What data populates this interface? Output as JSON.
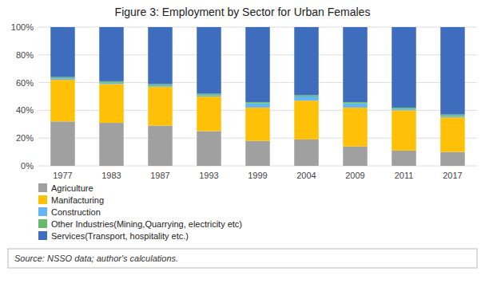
{
  "chart_data": {
    "type": "bar",
    "title": "Figure 3: Employment by Sector for Urban Females",
    "categories": [
      "1977",
      "1983",
      "1987",
      "1993",
      "1999",
      "2004",
      "2009",
      "2011",
      "2017"
    ],
    "series": [
      {
        "name": "Agriculture",
        "color": "#A0A0A0",
        "values": [
          32,
          31,
          29,
          25,
          18,
          19,
          14,
          11,
          10
        ]
      },
      {
        "name": "Manifacturing",
        "color": "#FFC107",
        "values": [
          30,
          28,
          28,
          25,
          24,
          28,
          28,
          29,
          25
        ]
      },
      {
        "name": "Construction",
        "color": "#64B5F6",
        "values": [
          1,
          1,
          1,
          1,
          3,
          3,
          3,
          1,
          1
        ]
      },
      {
        "name": "Other Industries(Mining,Quarrying, electricity etc)",
        "color": "#66BB6A",
        "values": [
          1,
          1,
          1,
          1,
          1,
          1,
          1,
          1,
          1
        ]
      },
      {
        "name": "Services(Transport, hospitality etc.)",
        "color": "#3F6DBE",
        "values": [
          36,
          39,
          41,
          48,
          54,
          49,
          54,
          58,
          63
        ]
      }
    ],
    "ylim": [
      0,
      100
    ],
    "yticks": [
      {
        "value": 0,
        "label": "0%"
      },
      {
        "value": 20,
        "label": "20%"
      },
      {
        "value": 40,
        "label": "40%"
      },
      {
        "value": 60,
        "label": "60%"
      },
      {
        "value": 80,
        "label": "80%"
      },
      {
        "value": 100,
        "label": "100%"
      }
    ],
    "stacked": true,
    "grid": true,
    "legend": "bottom",
    "annotations": [
      "Source: NSSO data; author's calculations."
    ]
  }
}
